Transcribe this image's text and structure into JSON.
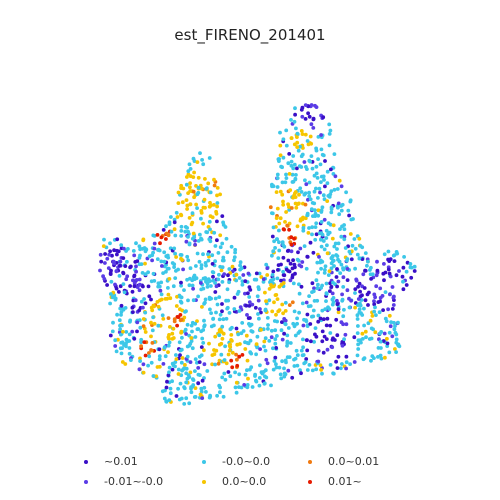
{
  "chart_data": {
    "type": "scatter",
    "title": "est_FIRENO_201401",
    "xlabel": "",
    "ylabel": "",
    "grid": false,
    "axes_visible": false,
    "legend_placement": "bottom",
    "series": [
      {
        "name": "~0.01",
        "color": "#3a0fc7",
        "share": 0.13
      },
      {
        "name": "-0.01~-0.0",
        "color": "#5a3ce6",
        "share": 0.12
      },
      {
        "name": "-0.0~0.0",
        "color": "#3cc7e8",
        "share": 0.5
      },
      {
        "name": "0.0~0.0",
        "color": "#f6c500",
        "share": 0.2
      },
      {
        "name": "0.0~0.01",
        "color": "#f07a10",
        "share": 0.04
      },
      {
        "name": "0.01~",
        "color": "#e61b00",
        "share": 0.01
      }
    ],
    "point_count": 1800
  }
}
